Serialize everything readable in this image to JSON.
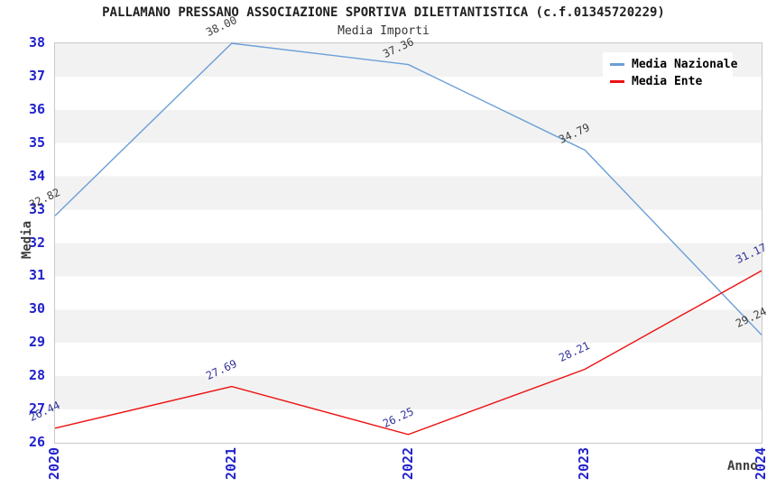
{
  "chart_data": {
    "type": "line",
    "title": "PALLAMANO PRESSANO ASSOCIAZIONE SPORTIVA DILETTANTISTICA (c.f.01345720229)",
    "subtitle": "Media Importi",
    "xlabel": "Anno",
    "ylabel": "Media",
    "categories": [
      "2020",
      "2021",
      "2022",
      "2023",
      "2024"
    ],
    "ylim": [
      26,
      38
    ],
    "ytick_step": 1,
    "grid": "banded-rows",
    "legend_position": "top-right",
    "series": [
      {
        "name": "Media Nazionale",
        "color": "#6b9fd8",
        "label_color": "#3d3d3d",
        "values": [
          32.82,
          38.0,
          37.36,
          34.79,
          29.24
        ]
      },
      {
        "name": "Media Ente",
        "color": "#ee1111",
        "label_color": "#333399",
        "values": [
          26.44,
          27.69,
          26.25,
          28.21,
          31.17
        ]
      }
    ],
    "colors": {
      "tick_label": "#2222cc",
      "band_gray": "#f2f2f2",
      "plot_border": "#c9c9c9",
      "title_text": "#1f1f1f"
    }
  }
}
